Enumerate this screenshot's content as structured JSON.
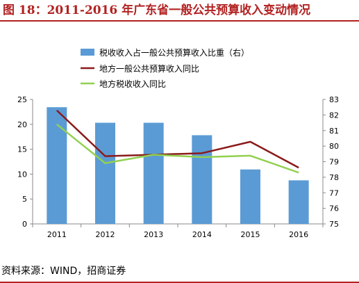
{
  "figure_title": "图 18：2011-2016 年广东省一般公共预算收入变动情况",
  "source_note": "资料来源：WIND，招商证券",
  "colors": {
    "title": "#b22222",
    "bar": "#5b9bd5",
    "line1": "#8b1a1a",
    "line2": "#92d050"
  },
  "chart_data": {
    "type": "bar",
    "categories": [
      "2011",
      "2012",
      "2013",
      "2014",
      "2015",
      "2016"
    ],
    "series": [
      {
        "name": "税收收入占一般公共预算收入比重（右）",
        "type": "bar",
        "axis": "right",
        "values": [
          82.5,
          81.5,
          81.5,
          80.7,
          78.5,
          77.8
        ]
      },
      {
        "name": "地方一般公共预算收入同比",
        "type": "line",
        "axis": "left",
        "values": [
          22.8,
          13.6,
          13.9,
          14.2,
          16.5,
          11.3
        ]
      },
      {
        "name": "地方税收收入同比",
        "type": "line",
        "axis": "left",
        "values": [
          20.0,
          12.2,
          13.9,
          13.4,
          13.7,
          10.3
        ]
      }
    ],
    "ylim_left": [
      0,
      25
    ],
    "yticks_left": [
      "0",
      "5",
      "10",
      "15",
      "20",
      "25"
    ],
    "ylim_right": [
      75,
      83
    ],
    "yticks_right": [
      "75",
      "76",
      "77",
      "78",
      "79",
      "80",
      "81",
      "82",
      "83"
    ],
    "xlabel": "",
    "ylabel": "",
    "grid": false,
    "legend": "top"
  }
}
